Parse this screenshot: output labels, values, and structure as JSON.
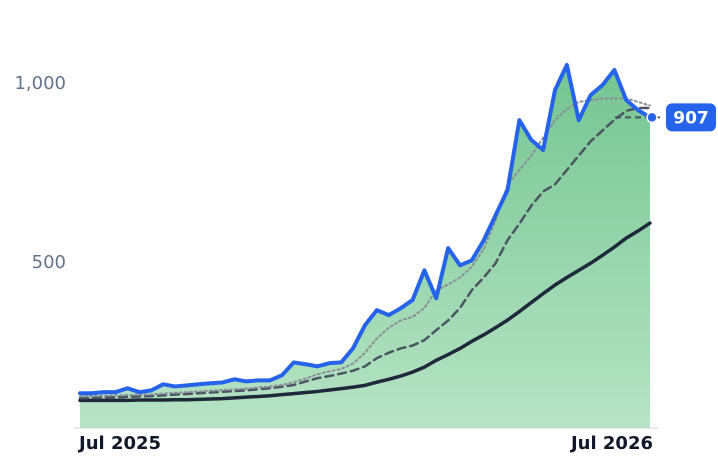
{
  "chart_data": {
    "type": "line",
    "categories": [
      "Jul 2025",
      null,
      null,
      null,
      null,
      null,
      null,
      null,
      null,
      null,
      null,
      null,
      null,
      null,
      null,
      null,
      null,
      null,
      null,
      null,
      null,
      null,
      null,
      null,
      null,
      null,
      null,
      null,
      null,
      null,
      null,
      null,
      null,
      null,
      null,
      null,
      null,
      null,
      null,
      null,
      null,
      null,
      null,
      null,
      null,
      null,
      null,
      null,
      "Jul 2026"
    ],
    "series": [
      {
        "color": "#2563eb",
        "style": "solid",
        "width": 4,
        "area": true,
        "values": [
          137,
          137,
          140,
          140,
          151,
          140,
          145,
          162,
          156,
          159,
          162,
          165,
          167,
          176,
          170,
          173,
          173,
          187,
          223,
          218,
          212,
          221,
          223,
          263,
          327,
          369,
          355,
          374,
          397,
          480,
          402,
          542,
          494,
          508,
          564,
          634,
          704,
          899,
          844,
          816,
          983,
          1053,
          899,
          969,
          997,
          1039,
          955,
          927,
          907
        ]
      },
      {
        "color": "#8a8f98",
        "style": "dotted",
        "width": 2,
        "values": [
          128,
          129,
          130,
          131,
          132,
          133,
          134,
          136,
          138,
          140,
          142,
          144,
          146,
          148,
          150,
          153,
          156,
          160,
          168,
          178,
          190,
          198,
          205,
          220,
          250,
          290,
          320,
          340,
          350,
          375,
          424,
          440,
          460,
          490,
          540,
          620,
          718,
          760,
          800,
          850,
          899,
          930,
          950,
          955,
          960,
          960,
          960,
          950,
          940
        ]
      },
      {
        "color": "#4b5563",
        "style": "dashed",
        "width": 2.5,
        "values": [
          123,
          124,
          125,
          126,
          127,
          128,
          129,
          131,
          133,
          135,
          137,
          139,
          141,
          143,
          145,
          148,
          151,
          155,
          160,
          170,
          179,
          185,
          192,
          200,
          212,
          235,
          250,
          262,
          270,
          285,
          313,
          340,
          375,
          425,
          460,
          500,
          564,
          610,
          660,
          700,
          720,
          760,
          800,
          840,
          870,
          900,
          925,
          933,
          933
        ]
      },
      {
        "color": "#1e293b",
        "style": "solid",
        "width": 3.5,
        "values": [
          117,
          117,
          117,
          117,
          117,
          118,
          118,
          118,
          119,
          119,
          120,
          121,
          122,
          124,
          126,
          128,
          130,
          133,
          136,
          139,
          142,
          146,
          150,
          154,
          159,
          168,
          176,
          185,
          196,
          210,
          229,
          245,
          262,
          282,
          300,
          320,
          341,
          365,
          390,
          415,
          439,
          460,
          480,
          500,
          522,
          545,
          570,
          590,
          612
        ]
      }
    ],
    "area_colors": [
      "#74c591",
      "#b7e4c5"
    ],
    "ylim": [
      40,
      1120
    ],
    "yticks": [
      500,
      {
        "value": 1000,
        "label": "1,000"
      }
    ],
    "grid": false
  }
}
